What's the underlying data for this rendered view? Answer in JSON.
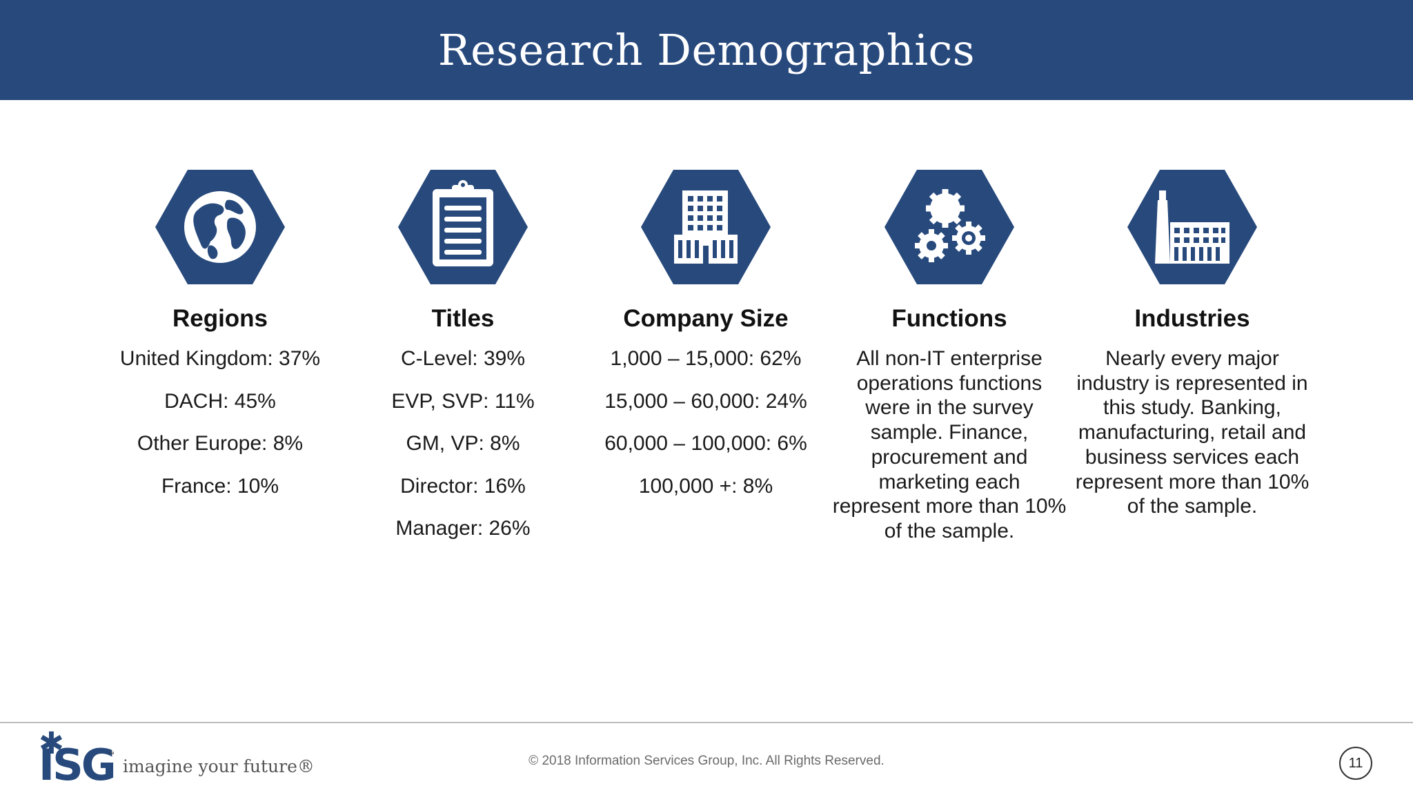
{
  "page": {
    "title": "Research Demographics"
  },
  "colors": {
    "brand_blue": "#27497c",
    "icon_white": "#ffffff"
  },
  "columns": [
    {
      "icon": "globe-icon",
      "title": "Regions",
      "items": [
        "United Kingdom: 37%",
        "DACH: 45%",
        "Other Europe: 8%",
        "France: 10%"
      ]
    },
    {
      "icon": "clipboard-icon",
      "title": "Titles",
      "items": [
        "C-Level: 39%",
        "EVP, SVP: 11%",
        "GM, VP: 8%",
        "Director: 16%",
        "Manager: 26%"
      ]
    },
    {
      "icon": "building-icon",
      "title": "Company Size",
      "items": [
        "1,000 – 15,000: 62%",
        "15,000 – 60,000: 24%",
        "60,000 – 100,000: 6%",
        "100,000 +: 8%"
      ]
    },
    {
      "icon": "gears-icon",
      "title": "Functions",
      "text": "All non-IT enterprise operations functions were in the survey sample. Finance, procurement and marketing each represent more than 10% of the sample."
    },
    {
      "icon": "factory-icon",
      "title": "Industries",
      "text": "Nearly every major industry is represented in this study. Banking, manufacturing, retail and business services each represent more than 10% of the sample."
    }
  ],
  "footer": {
    "logo_text": "ISG",
    "logo_tm": "™",
    "tagline": "imagine your future®",
    "copyright": "© 2018 Information Services Group, Inc.  All Rights Reserved.",
    "page_number": "11"
  }
}
